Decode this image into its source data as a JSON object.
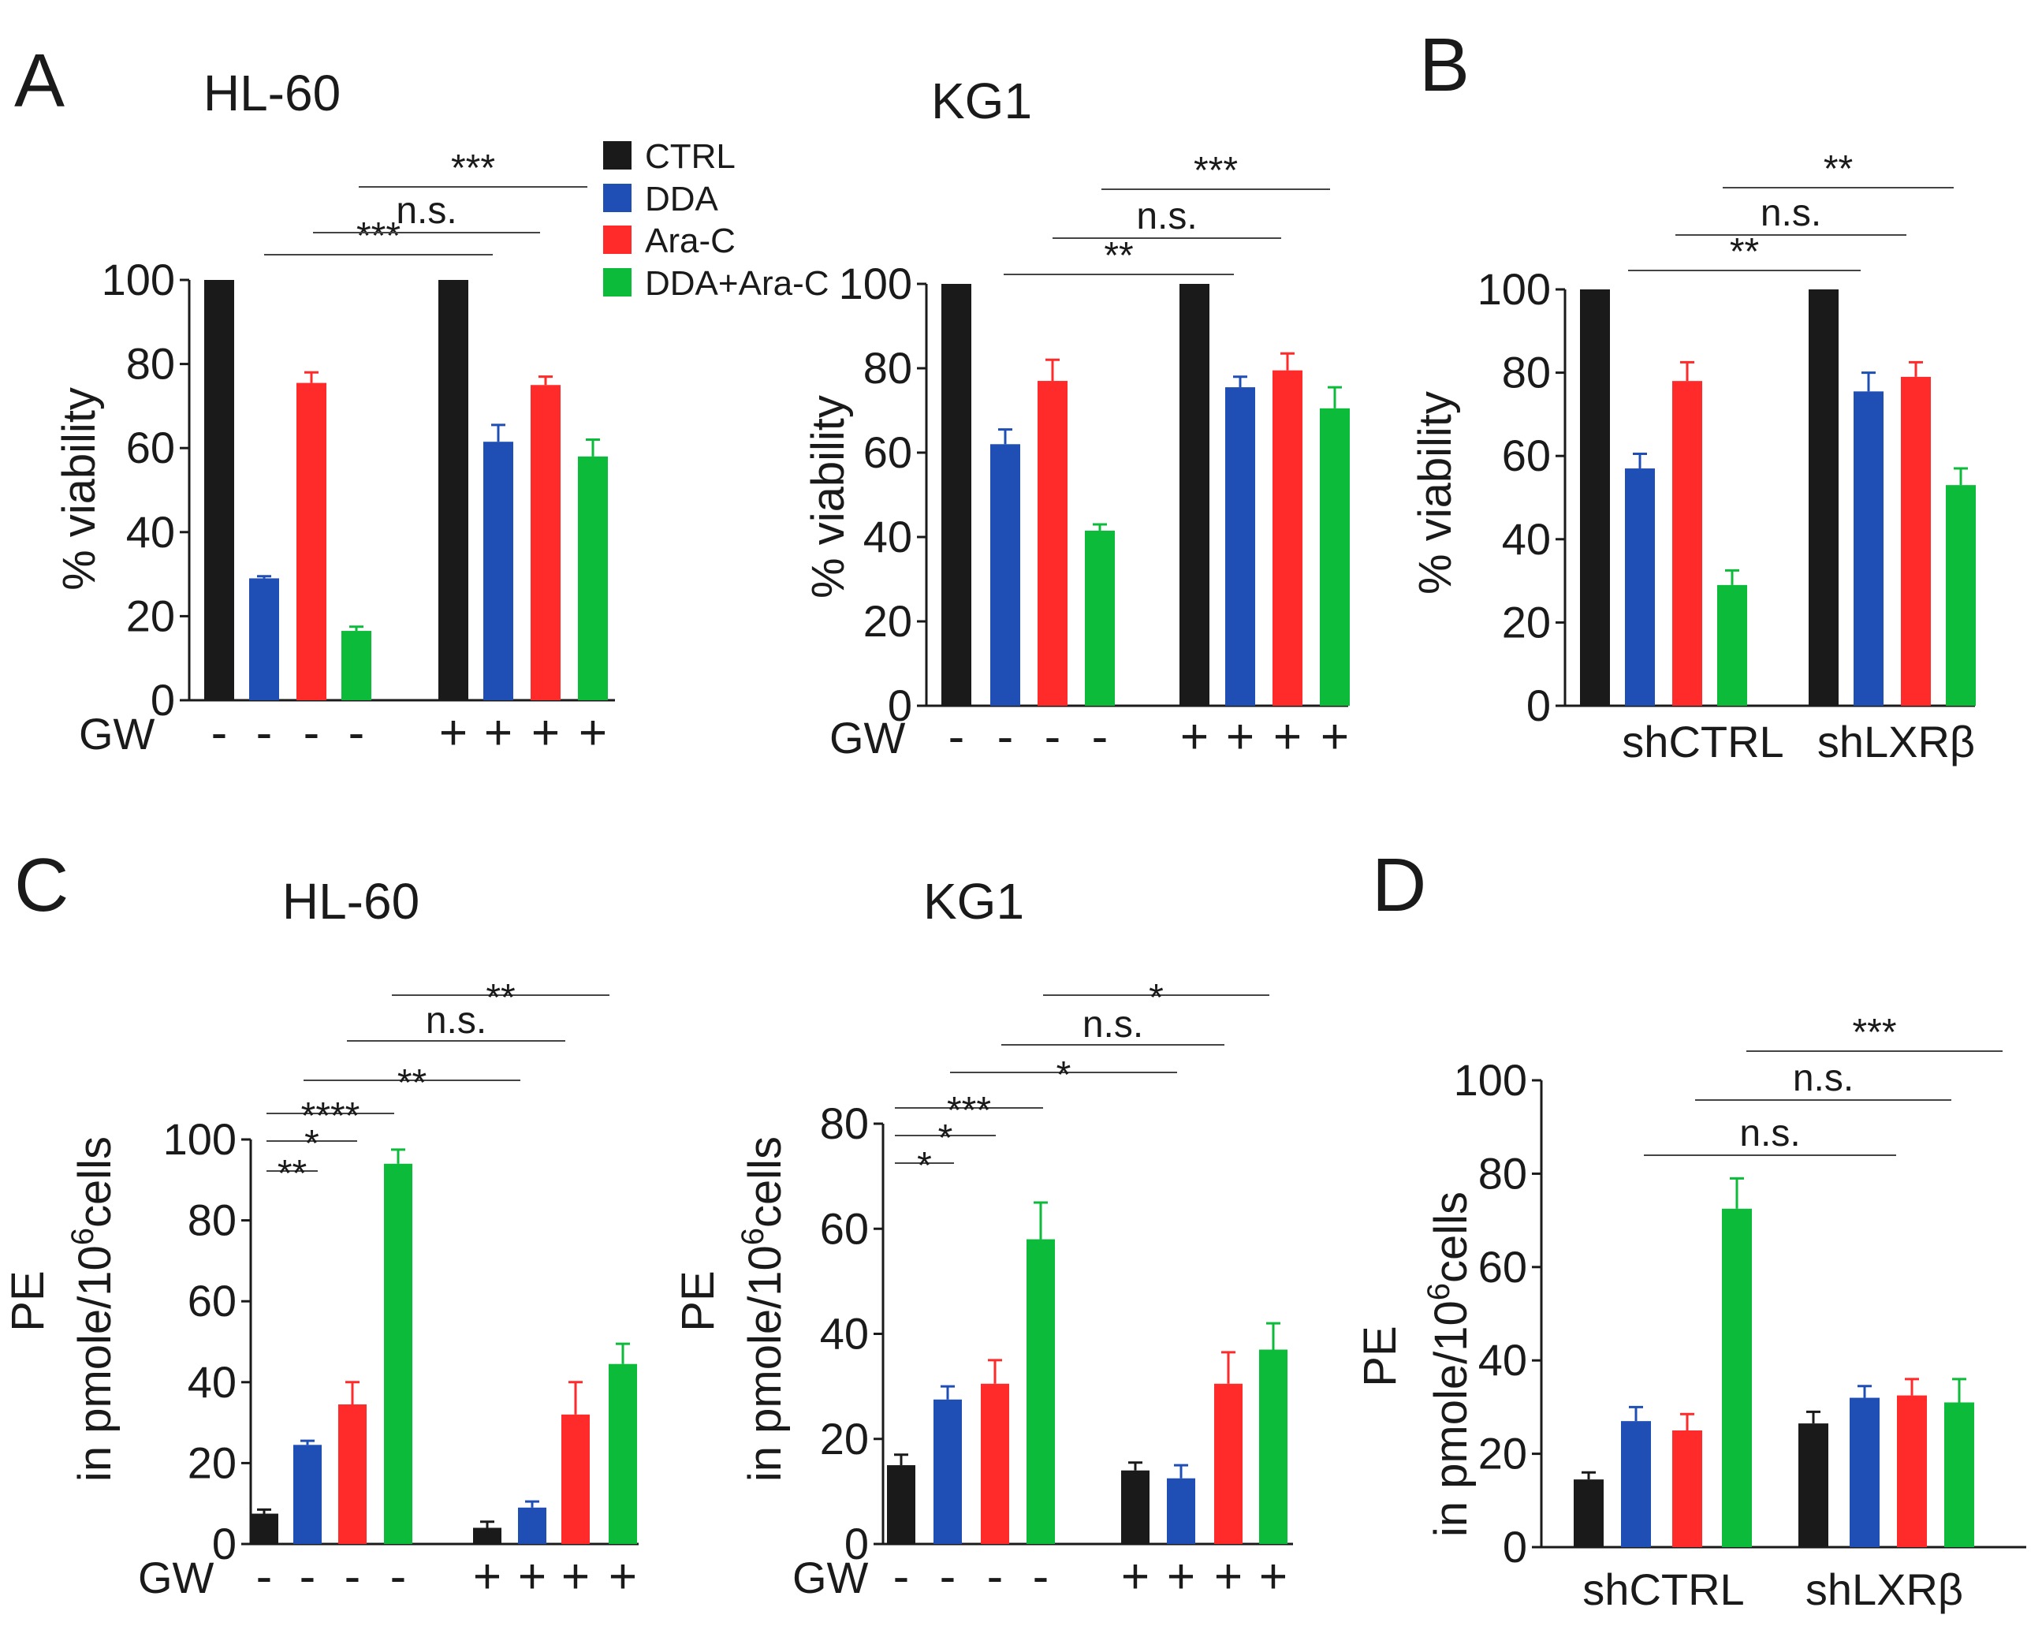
{
  "colors": {
    "CTRL": "#1a1a1a",
    "DDA": "#1f4fb4",
    "Ara-C": "#ff2a2a",
    "DDA+Ara-C": "#0dbb3a"
  },
  "legend": [
    "CTRL",
    "DDA",
    "Ara-C",
    "DDA+Ara-C"
  ],
  "chart_data": [
    {
      "id": "A1",
      "panel_letter": "A",
      "type": "bar",
      "title": "HL-60",
      "ylabel": "% viability",
      "ylim": [
        0,
        100
      ],
      "yticks": [
        "0",
        "20",
        "40",
        "60",
        "80",
        "100"
      ],
      "xlabel_prefix": "GW",
      "x_signs": [
        "-",
        "-",
        "-",
        "-",
        "+",
        "+",
        "+",
        "+"
      ],
      "categories": [
        "CTRL",
        "DDA",
        "Ara-C",
        "DDA+Ara-C",
        "CTRL",
        "DDA",
        "Ara-C",
        "DDA+Ara-C"
      ],
      "values": [
        100,
        29,
        75.5,
        16.5,
        100,
        61.5,
        75,
        58
      ],
      "errors": [
        0,
        0.5,
        2.5,
        1,
        0,
        4,
        2,
        4
      ],
      "comparisons": [
        {
          "label": "***",
          "from": 1,
          "to": 5
        },
        {
          "label": "n.s.",
          "from": 2,
          "to": 6
        },
        {
          "label": "***",
          "from": 3,
          "to": 7
        }
      ]
    },
    {
      "id": "A2",
      "type": "bar",
      "title": "KG1",
      "ylabel": "% viability",
      "ylim": [
        0,
        100
      ],
      "yticks": [
        "0",
        "20",
        "40",
        "60",
        "80",
        "100"
      ],
      "xlabel_prefix": "GW",
      "x_signs": [
        "-",
        "-",
        "-",
        "-",
        "+",
        "+",
        "+",
        "+"
      ],
      "categories": [
        "CTRL",
        "DDA",
        "Ara-C",
        "DDA+Ara-C",
        "CTRL",
        "DDA",
        "Ara-C",
        "DDA+Ara-C"
      ],
      "values": [
        100,
        62,
        77,
        41.5,
        100,
        75.5,
        79.5,
        70.5
      ],
      "errors": [
        0,
        3.5,
        5,
        1.5,
        0,
        2.5,
        4,
        5
      ],
      "comparisons": [
        {
          "label": "**",
          "from": 1,
          "to": 5
        },
        {
          "label": "n.s.",
          "from": 2,
          "to": 6
        },
        {
          "label": "***",
          "from": 3,
          "to": 7
        }
      ]
    },
    {
      "id": "B",
      "panel_letter": "B",
      "type": "bar",
      "ylabel": "% viability",
      "ylim": [
        0,
        100
      ],
      "yticks": [
        "0",
        "20",
        "40",
        "60",
        "80",
        "100"
      ],
      "groups": [
        "shCTRL",
        "shLXRβ"
      ],
      "categories": [
        "CTRL",
        "DDA",
        "Ara-C",
        "DDA+Ara-C",
        "CTRL",
        "DDA",
        "Ara-C",
        "DDA+Ara-C"
      ],
      "values": [
        100,
        57,
        78,
        29,
        100,
        75.5,
        79,
        53
      ],
      "errors": [
        0,
        3.5,
        4.5,
        3.5,
        0,
        4.5,
        3.5,
        4
      ],
      "comparisons": [
        {
          "label": "**",
          "from": 1,
          "to": 5
        },
        {
          "label": "n.s.",
          "from": 2,
          "to": 6
        },
        {
          "label": "**",
          "from": 3,
          "to": 7
        }
      ]
    },
    {
      "id": "C1",
      "panel_letter": "C",
      "type": "bar",
      "title": "HL-60",
      "ylabel_line1": "PE",
      "ylabel_line2": "in pmole/10",
      "ylabel_sup": "6",
      "ylabel_tail": "cells",
      "ylim": [
        0,
        100
      ],
      "yticks": [
        "0",
        "20",
        "40",
        "60",
        "80",
        "100"
      ],
      "xlabel_prefix": "GW",
      "x_signs": [
        "-",
        "-",
        "-",
        "-",
        "+",
        "+",
        "+",
        "+"
      ],
      "categories": [
        "CTRL",
        "DDA",
        "Ara-C",
        "DDA+Ara-C",
        "CTRL",
        "DDA",
        "Ara-C",
        "DDA+Ara-C"
      ],
      "values": [
        7.5,
        24.5,
        34.5,
        94,
        4,
        9,
        32,
        44.5
      ],
      "errors": [
        1,
        1,
        5.5,
        3.5,
        1.5,
        1.5,
        8,
        5
      ],
      "comparisons": [
        {
          "label": "**",
          "from": 0,
          "to": 1
        },
        {
          "label": "*",
          "from": 0,
          "to": 2
        },
        {
          "label": "****",
          "from": 0,
          "to": 3
        },
        {
          "label": "**",
          "from": 1,
          "to": 5
        },
        {
          "label": "n.s.",
          "from": 2,
          "to": 6
        },
        {
          "label": "**",
          "from": 3,
          "to": 7
        }
      ]
    },
    {
      "id": "C2",
      "type": "bar",
      "title": "KG1",
      "ylabel_line1": "PE",
      "ylabel_line2": "in pmole/10",
      "ylabel_sup": "6",
      "ylabel_tail": "cells",
      "ylim": [
        0,
        80
      ],
      "yticks": [
        "0",
        "20",
        "40",
        "60",
        "80"
      ],
      "xlabel_prefix": "GW",
      "x_signs": [
        "-",
        "-",
        "-",
        "-",
        "+",
        "+",
        "+",
        "+"
      ],
      "categories": [
        "CTRL",
        "DDA",
        "Ara-C",
        "DDA+Ara-C",
        "CTRL",
        "DDA",
        "Ara-C",
        "DDA+Ara-C"
      ],
      "values": [
        15,
        27.5,
        30.5,
        58,
        14,
        12.5,
        30.5,
        37
      ],
      "errors": [
        2,
        2.5,
        4.5,
        7,
        1.5,
        2.5,
        6,
        5
      ],
      "comparisons": [
        {
          "label": "*",
          "from": 0,
          "to": 1
        },
        {
          "label": "*",
          "from": 0,
          "to": 2
        },
        {
          "label": "***",
          "from": 0,
          "to": 3
        },
        {
          "label": "*",
          "from": 1,
          "to": 5
        },
        {
          "label": "n.s.",
          "from": 2,
          "to": 6
        },
        {
          "label": "*",
          "from": 3,
          "to": 7
        }
      ]
    },
    {
      "id": "D",
      "panel_letter": "D",
      "type": "bar",
      "ylabel_line1": "PE",
      "ylabel_line2": "in pmole/10",
      "ylabel_sup": "6",
      "ylabel_tail": "cells",
      "ylim": [
        0,
        100
      ],
      "yticks": [
        "0",
        "20",
        "40",
        "60",
        "80",
        "100"
      ],
      "groups": [
        "shCTRL",
        "shLXRβ"
      ],
      "categories": [
        "CTRL",
        "DDA",
        "Ara-C",
        "DDA+Ara-C",
        "CTRL",
        "DDA",
        "Ara-C",
        "DDA+Ara-C"
      ],
      "values": [
        14.5,
        27,
        25,
        72.5,
        26.5,
        32,
        32.5,
        31
      ],
      "errors": [
        1.5,
        3,
        3.5,
        6.5,
        2.5,
        2.5,
        3.5,
        5
      ],
      "comparisons": [
        {
          "label": "n.s.",
          "from": 1,
          "to": 5
        },
        {
          "label": "n.s.",
          "from": 2,
          "to": 6
        },
        {
          "label": "***",
          "from": 3,
          "to": 7
        }
      ]
    }
  ]
}
